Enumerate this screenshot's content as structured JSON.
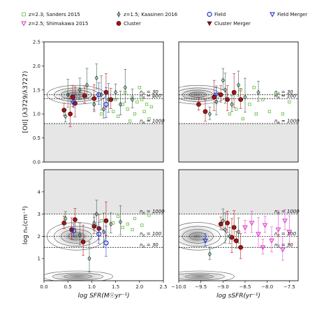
{
  "legend": [
    {
      "label": "z=2.3; Sanders 2015",
      "marker": "square-open",
      "color": "#66bb44"
    },
    {
      "label": "z=2.5; Shimakawa 2015",
      "marker": "tri-down-open",
      "color": "#dd44cc"
    },
    {
      "label": "z=1.5; Kaasinen 2016",
      "marker": "diamond-open",
      "color": "#335544"
    },
    {
      "label": "Cluster",
      "marker": "circle-filled",
      "color": "#aa1111"
    },
    {
      "label": "Field",
      "marker": "circle-open",
      "color": "#2233cc"
    },
    {
      "label": "Cluster Merger",
      "marker": "tri-down-filled",
      "color": "#881111"
    },
    {
      "label": "Field Merger",
      "marker": "tri-down-open",
      "color": "#2233cc"
    }
  ],
  "chart_data": [
    {
      "type": "scatter",
      "panel": "top-left",
      "xlabel": "",
      "ylabel": "[OII] (λ3729/λ3727)",
      "xlim": [
        0.0,
        2.5
      ],
      "ylim": [
        0.0,
        2.5
      ],
      "xticks": [],
      "yticks": [
        "0.0",
        "0.5",
        "1.0",
        "1.5",
        "2.0",
        "2.5"
      ],
      "hlines": [
        {
          "y": 1.4,
          "label": "n_e = 30"
        },
        {
          "y": 1.32,
          "label": "n_e = 100"
        },
        {
          "y": 0.8,
          "label": "n_e = 1000"
        }
      ],
      "shade_below": 0.8,
      "series": [
        {
          "name": "Cluster",
          "points": [
            [
              0.42,
              1.08
            ],
            [
              0.6,
              1.35
            ],
            [
              0.65,
              1.22
            ],
            [
              0.85,
              1.38
            ],
            [
              1.05,
              1.32
            ],
            [
              1.3,
              1.45
            ],
            [
              1.4,
              1.3
            ],
            [
              0.55,
              1.0
            ]
          ]
        },
        {
          "name": "Field",
          "points": [
            [
              0.62,
              1.25
            ],
            [
              1.15,
              1.4
            ],
            [
              1.3,
              1.2
            ]
          ]
        },
        {
          "name": "z=2.3; Sanders 2015",
          "points": [
            [
              1.2,
              1.0
            ],
            [
              1.45,
              1.05
            ],
            [
              1.55,
              0.95
            ],
            [
              1.65,
              1.2
            ],
            [
              1.75,
              1.1
            ],
            [
              1.8,
              0.85
            ],
            [
              1.9,
              1.0
            ],
            [
              1.95,
              1.25
            ],
            [
              2.05,
              1.3
            ],
            [
              2.1,
              1.05
            ],
            [
              2.2,
              0.9
            ],
            [
              2.25,
              1.15
            ],
            [
              2.3,
              1.38
            ],
            [
              1.5,
              1.3
            ],
            [
              1.7,
              1.45
            ],
            [
              2.0,
              1.55
            ],
            [
              2.15,
              1.2
            ],
            [
              1.85,
              1.35
            ]
          ]
        },
        {
          "name": "z=1.5; Kaasinen 2016",
          "points": [
            [
              0.45,
              0.95
            ],
            [
              0.75,
              1.5
            ],
            [
              0.9,
              1.6
            ],
            [
              1.05,
              1.2
            ],
            [
              1.1,
              1.75
            ],
            [
              1.2,
              1.4
            ],
            [
              1.25,
              1.1
            ],
            [
              1.35,
              1.3
            ],
            [
              1.5,
              1.45
            ],
            [
              1.6,
              1.2
            ],
            [
              1.7,
              1.55
            ],
            [
              1.85,
              1.3
            ],
            [
              0.5,
              1.4
            ]
          ]
        }
      ]
    },
    {
      "type": "scatter",
      "panel": "top-right",
      "xlabel": "",
      "ylabel": "",
      "xlim": [
        -10.0,
        -7.3
      ],
      "ylim": [
        0.0,
        2.5
      ],
      "xticks": [],
      "yticks": [],
      "hlines": [
        {
          "y": 1.4,
          "label": "n_e = 30"
        },
        {
          "y": 1.32,
          "label": "n_e = 100"
        },
        {
          "y": 0.8,
          "label": "n_e = 1000"
        }
      ],
      "shade_below": 0.8,
      "series": [
        {
          "name": "Cluster",
          "points": [
            [
              -9.55,
              1.2
            ],
            [
              -9.4,
              1.05
            ],
            [
              -9.2,
              1.35
            ],
            [
              -9.05,
              1.4
            ],
            [
              -8.9,
              1.3
            ],
            [
              -8.75,
              1.45
            ],
            [
              -8.6,
              1.3
            ]
          ]
        },
        {
          "name": "Field Merger",
          "points": [
            [
              -9.15,
              1.4
            ]
          ]
        },
        {
          "name": "z=2.3; Sanders 2015",
          "points": [
            [
              -8.85,
              1.0
            ],
            [
              -8.7,
              1.1
            ],
            [
              -8.55,
              0.9
            ],
            [
              -8.4,
              1.2
            ],
            [
              -8.25,
              1.0
            ],
            [
              -8.1,
              1.3
            ],
            [
              -7.95,
              1.05
            ],
            [
              -7.8,
              1.4
            ],
            [
              -7.65,
              1.0
            ],
            [
              -7.5,
              1.25
            ],
            [
              -8.6,
              1.5
            ],
            [
              -8.3,
              1.55
            ]
          ]
        },
        {
          "name": "z=1.5; Kaasinen 2016",
          "points": [
            [
              -9.3,
              1.0
            ],
            [
              -9.0,
              1.7
            ],
            [
              -8.95,
              1.5
            ],
            [
              -8.8,
              1.2
            ],
            [
              -8.65,
              1.6
            ],
            [
              -8.5,
              1.35
            ],
            [
              -8.2,
              1.45
            ],
            [
              -9.15,
              1.25
            ]
          ]
        }
      ]
    },
    {
      "type": "scatter",
      "panel": "bottom-left",
      "xlabel": "log SFR(M☉yr⁻¹)",
      "ylabel": "log nₑ(cm⁻³)",
      "xlim": [
        0.0,
        2.5
      ],
      "ylim": [
        0,
        5
      ],
      "xticks": [
        "0.0",
        "0.5",
        "1.0",
        "1.5",
        "2.0",
        "2.5"
      ],
      "yticks": [
        "1",
        "2",
        "3",
        "4"
      ],
      "hlines": [
        {
          "y": 3.0,
          "label": "n_e = 1000"
        },
        {
          "y": 2.0,
          "label": "n_e = 100"
        },
        {
          "y": 1.5,
          "label": "n_e = 30"
        }
      ],
      "shade_above": 3.0,
      "series": [
        {
          "name": "Cluster",
          "points": [
            [
              0.42,
              2.6
            ],
            [
              0.58,
              2.3
            ],
            [
              0.82,
              1.75
            ],
            [
              1.05,
              2.45
            ],
            [
              1.15,
              2.35
            ],
            [
              1.3,
              2.7
            ],
            [
              0.65,
              2.75
            ]
          ]
        },
        {
          "name": "Field",
          "points": [
            [
              0.62,
              2.25
            ],
            [
              1.15,
              2.1
            ],
            [
              1.3,
              1.7
            ]
          ]
        },
        {
          "name": "z=2.3; Sanders 2015",
          "points": [
            [
              1.2,
              2.7
            ],
            [
              1.45,
              2.6
            ],
            [
              1.55,
              2.9
            ],
            [
              1.65,
              2.4
            ],
            [
              1.75,
              2.55
            ],
            [
              1.9,
              2.8
            ],
            [
              2.05,
              2.5
            ],
            [
              2.2,
              2.95
            ],
            [
              1.85,
              2.3
            ]
          ]
        },
        {
          "name": "z=1.5; Kaasinen 2016",
          "points": [
            [
              0.45,
              2.8
            ],
            [
              0.75,
              2.05
            ],
            [
              0.95,
              1.0
            ],
            [
              1.05,
              2.6
            ],
            [
              1.1,
              3.0
            ],
            [
              1.25,
              2.2
            ],
            [
              1.4,
              2.55
            ],
            [
              1.6,
              2.65
            ]
          ]
        }
      ]
    },
    {
      "type": "scatter",
      "panel": "bottom-right",
      "xlabel": "log sSFR(yr⁻¹)",
      "ylabel": "",
      "xlim": [
        -10.0,
        -7.3
      ],
      "ylim": [
        0,
        5
      ],
      "xticks": [
        "-10.0",
        "-9.5",
        "-9.0",
        "-8.5",
        "-8.0",
        "-7.5"
      ],
      "yticks": [],
      "hlines": [
        {
          "y": 3.0,
          "label": "n_e = 1000"
        },
        {
          "y": 2.0,
          "label": "n_e = 100"
        },
        {
          "y": 1.5,
          "label": "n_e = 30"
        }
      ],
      "shade_above": 3.0,
      "series": [
        {
          "name": "Cluster",
          "points": [
            [
              -9.05,
              2.55
            ],
            [
              -8.9,
              2.6
            ],
            [
              -8.75,
              2.4
            ],
            [
              -8.7,
              1.8
            ],
            [
              -8.6,
              1.5
            ],
            [
              -8.8,
              1.95
            ]
          ]
        },
        {
          "name": "Field Merger",
          "points": [
            [
              -9.4,
              1.8
            ]
          ]
        },
        {
          "name": "z=2.5; Shimakawa 2015",
          "points": [
            [
              -8.5,
              2.4
            ],
            [
              -8.35,
              2.6
            ],
            [
              -8.2,
              2.1
            ],
            [
              -8.05,
              2.5
            ],
            [
              -7.9,
              1.8
            ],
            [
              -7.75,
              2.3
            ],
            [
              -7.6,
              2.7
            ],
            [
              -7.5,
              2.2
            ],
            [
              -8.1,
              1.5
            ],
            [
              -7.65,
              1.4
            ]
          ]
        },
        {
          "name": "z=1.5; Kaasinen 2016",
          "points": [
            [
              -9.3,
              1.2
            ],
            [
              -9.0,
              2.7
            ],
            [
              -8.95,
              2.3
            ],
            [
              -8.85,
              2.0
            ],
            [
              -8.65,
              2.2
            ]
          ]
        }
      ]
    }
  ]
}
